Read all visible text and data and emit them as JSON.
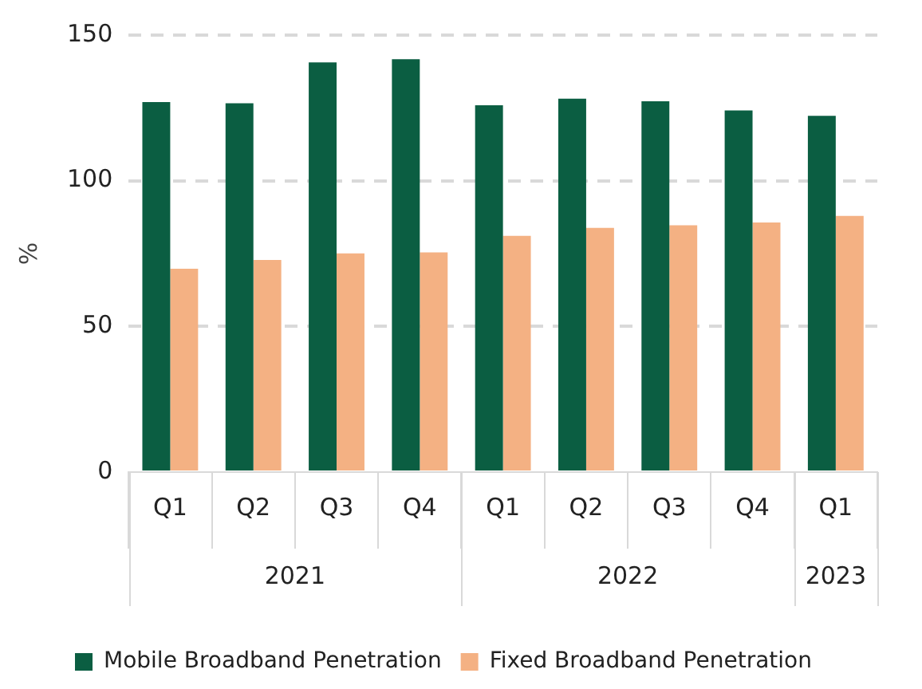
{
  "chart_data": {
    "type": "bar",
    "ylabel": "%",
    "categories": [
      "Q1",
      "Q2",
      "Q3",
      "Q4",
      "Q1",
      "Q2",
      "Q3",
      "Q4",
      "Q1"
    ],
    "series": [
      {
        "name": "Mobile Broadband Penetration",
        "color": "#0b5e42",
        "values": [
          127,
          126.6,
          140.6,
          141.7,
          125.9,
          128.2,
          127.3,
          124.1,
          122.3
        ]
      },
      {
        "name": "Fixed Broadband Penetration",
        "color": "#f4b183",
        "values": [
          69.8,
          72.8,
          75.1,
          75.4,
          81.1,
          83.8,
          84.7,
          85.7,
          87.9
        ]
      }
    ],
    "annotations": [
      "2021",
      "2022",
      "2023"
    ],
    "ylim": [
      0,
      150
    ],
    "yticks": [
      0,
      50,
      100,
      150
    ],
    "grid": "y",
    "legend": "bottom"
  }
}
